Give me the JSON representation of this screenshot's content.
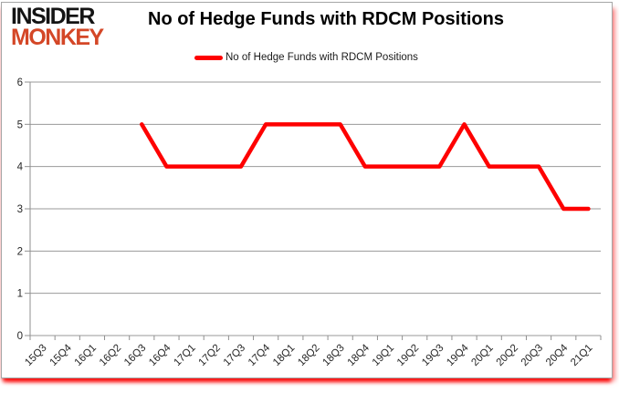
{
  "logo": {
    "line1": "INSIDER",
    "line2": "MONKEY",
    "line1_color": "#141414",
    "line2_color": "#d44727"
  },
  "header": {
    "title": "No of Hedge Funds with RDCM Positions"
  },
  "legend": {
    "label": "No of Hedge Funds with RDCM Positions",
    "swatch_color": "#fe0000"
  },
  "chart_data": {
    "type": "line",
    "title": "No of Hedge Funds with RDCM Positions",
    "categories": [
      "15Q3",
      "15Q4",
      "16Q1",
      "16Q2",
      "16Q3",
      "16Q4",
      "17Q1",
      "17Q2",
      "17Q3",
      "17Q4",
      "18Q1",
      "18Q2",
      "18Q3",
      "18Q4",
      "19Q1",
      "19Q2",
      "19Q3",
      "19Q4",
      "20Q1",
      "20Q2",
      "20Q3",
      "20Q4",
      "21Q1"
    ],
    "series": [
      {
        "name": "No of Hedge Funds with RDCM Positions",
        "color": "#fe0000",
        "values": [
          null,
          null,
          null,
          null,
          5,
          4,
          4,
          4,
          4,
          5,
          5,
          5,
          5,
          4,
          4,
          4,
          4,
          5,
          4,
          4,
          4,
          3,
          3
        ]
      }
    ],
    "xlabel": "",
    "ylabel": "",
    "ylim": [
      0,
      6
    ],
    "yticks": [
      0,
      1,
      2,
      3,
      4,
      5,
      6
    ],
    "grid": true,
    "legend_position": "top-center"
  },
  "colors": {
    "grid": "#999999",
    "axis": "#8f8f8f",
    "tick_label": "#262626",
    "frame_border": "#a6a6a6",
    "frame_glow": "#fb0404",
    "background": "#ffffff"
  }
}
